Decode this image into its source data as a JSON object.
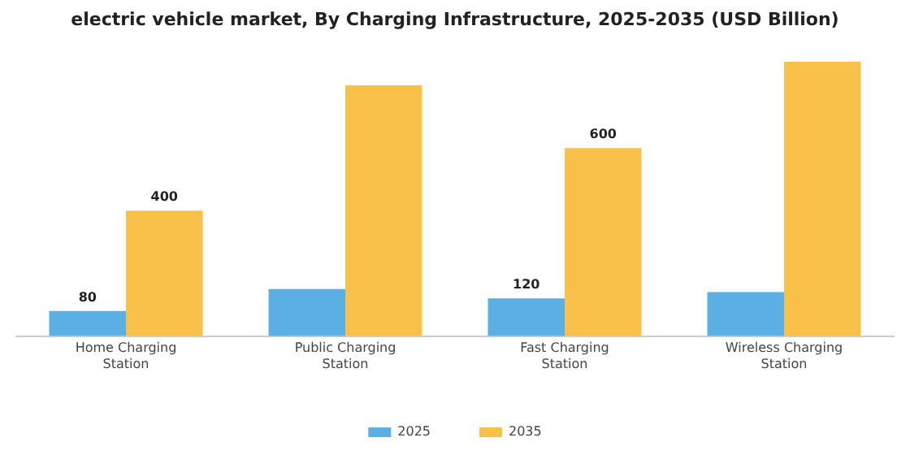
{
  "chart_data": {
    "type": "bar",
    "title": "electric vehicle market, By Charging Infrastructure, 2025-2035 (USD Billion)",
    "categories": [
      "Home Charging Station",
      "Public Charging Station",
      "Fast Charging Station",
      "Wireless Charging Station"
    ],
    "series": [
      {
        "name": "2025",
        "color": "#5aafe3",
        "values": [
          80,
          150,
          120,
          140
        ],
        "value_labels": [
          "80",
          null,
          "120",
          null
        ]
      },
      {
        "name": "2035",
        "color": "#f9c04a",
        "values": [
          400,
          800,
          600,
          875
        ],
        "value_labels": [
          "400",
          null,
          "600",
          null
        ]
      }
    ],
    "legend": "bottom",
    "grid": false,
    "tick_labels": "x"
  }
}
